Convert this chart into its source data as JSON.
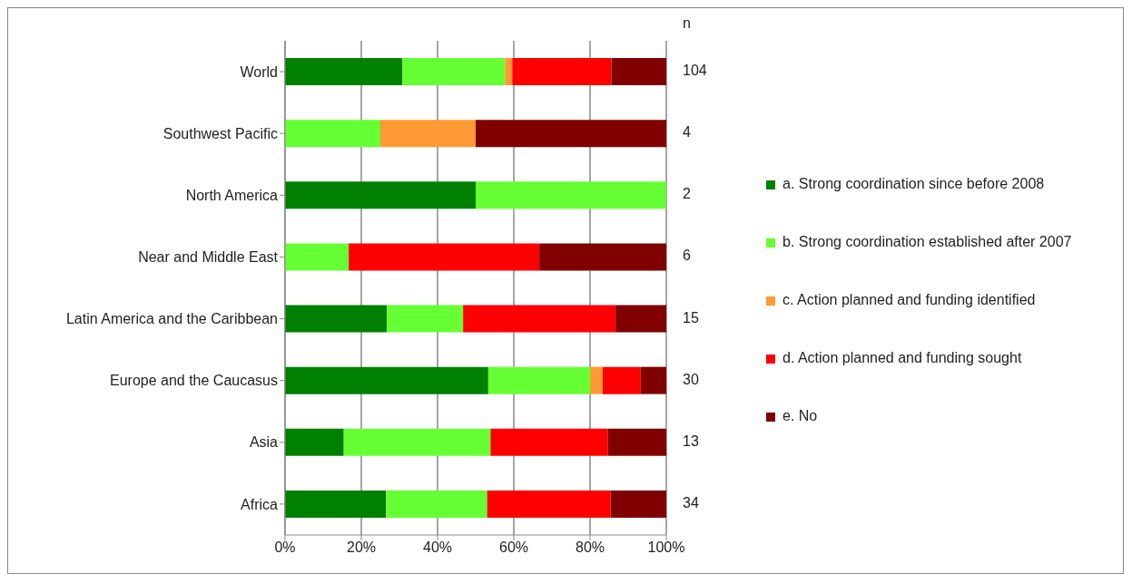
{
  "chart_data": {
    "type": "bar",
    "orientation": "horizontal",
    "stacked": true,
    "categories": [
      "World",
      "Southwest Pacific",
      "North America",
      "Near and Middle East",
      "Latin America and the Caribbean",
      "Europe and the Caucasus",
      "Asia",
      "Africa"
    ],
    "series": [
      {
        "name": "a. Strong coordination since before 2008",
        "color": "#008000",
        "values": [
          30.8,
          0,
          50,
          0,
          26.7,
          53.3,
          15.4,
          26.5
        ]
      },
      {
        "name": "b. Strong coordination established after 2007",
        "color": "#66ff33",
        "values": [
          26.9,
          25,
          50,
          16.7,
          20,
          26.7,
          38.5,
          26.5
        ]
      },
      {
        "name": "c. Action planned and funding identified",
        "color": "#ff9933",
        "values": [
          1.9,
          25,
          0,
          0,
          0,
          3.3,
          0,
          0
        ]
      },
      {
        "name": "d. Action planned and funding sought",
        "color": "#ff0000",
        "values": [
          26,
          0,
          0,
          50,
          40,
          10,
          30.8,
          32.4
        ]
      },
      {
        "name": "e. No",
        "color": "#800000",
        "values": [
          14.4,
          50,
          0,
          33.3,
          13.3,
          6.7,
          15.4,
          14.7
        ]
      }
    ],
    "xlim": [
      0,
      100
    ],
    "xticks": [
      {
        "value": 0,
        "label": "0%"
      },
      {
        "value": 20,
        "label": "20%"
      },
      {
        "value": 40,
        "label": "40%"
      },
      {
        "value": 60,
        "label": "60%"
      },
      {
        "value": 80,
        "label": "80%"
      },
      {
        "value": 100,
        "label": "100%"
      }
    ],
    "grid": "x",
    "legend": "right",
    "annotations": [
      "n",
      "104",
      "4",
      "2",
      "6",
      "15",
      "30",
      "13",
      "34"
    ]
  }
}
